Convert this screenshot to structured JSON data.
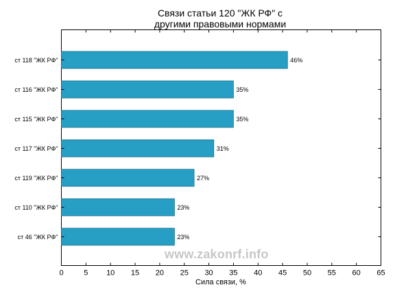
{
  "chart_data": {
    "type": "bar",
    "orientation": "horizontal",
    "title_lines": [
      "Связи статьи 120 \"ЖК РФ\" с",
      "другими правовыми нормами"
    ],
    "xlabel": "Сила связи, %",
    "ylabel": "",
    "xlim": [
      0,
      65
    ],
    "xticks": [
      0,
      5,
      10,
      15,
      20,
      25,
      30,
      35,
      40,
      45,
      50,
      55,
      60,
      65
    ],
    "categories": [
      "ст 118 \"ЖК РФ\"",
      "ст 116 \"ЖК РФ\"",
      "ст 115 \"ЖК РФ\"",
      "ст 117 \"ЖК РФ\"",
      "ст 119 \"ЖК РФ\"",
      "ст 110 \"ЖК РФ\"",
      "ст 46 \"ЖК РФ\""
    ],
    "values": [
      46,
      35,
      35,
      31,
      27,
      23,
      23
    ],
    "value_labels": [
      "46%",
      "35%",
      "35%",
      "31%",
      "27%",
      "23%",
      "23%"
    ],
    "bar_color": "#279fc5",
    "grid": false,
    "legend": "none"
  },
  "watermark": "www.zakonrf.info"
}
